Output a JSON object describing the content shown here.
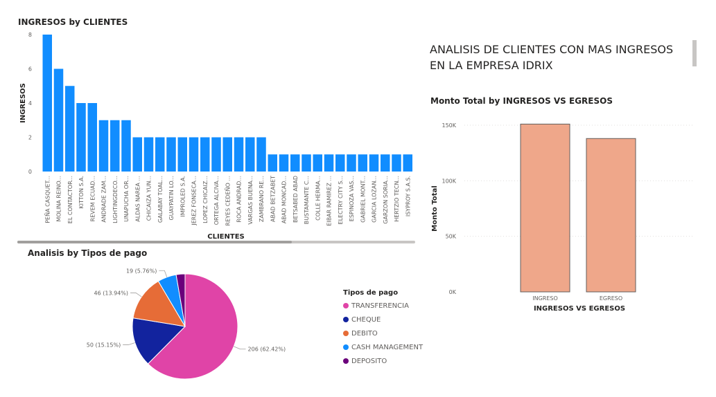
{
  "report": {
    "title": "ANALISIS DE CLIENTES CON MAS INGRESOS EN LA EMPRESA IDRIX",
    "scroll_indicator_color": "#c8c6c4"
  },
  "colors": {
    "bar_blue": "#118dff",
    "bar_salmon": "#efa78a",
    "bar_outline": "#605e5c",
    "scrollbar": "#c8c6c4"
  },
  "chart_data": [
    {
      "id": "clientes",
      "type": "bar",
      "title": "INGRESOS by CLIENTES",
      "xlabel": "CLIENTES",
      "ylabel": "INGRESOS",
      "ylim": [
        0,
        8
      ],
      "yticks": [
        0,
        2,
        4,
        6,
        8
      ],
      "grid": false,
      "color": "#118dff",
      "categories": [
        "PEÑA CASQUET...",
        "MOLINA REINO...",
        "EL CONTACTOR...",
        "KITTON S.A.",
        "REVEM ECUAD...",
        "ANDRADE ZAM...",
        "LIGHTINGDECO...",
        "UNAPUCHA OR...",
        "ALDAS NAREA ...",
        "CHICAIZA YUN...",
        "GALABAY TOAL...",
        "GUAYPATIN LO...",
        "IMPROLED S.A.",
        "JEREZ FONSECA...",
        "LOPEZ CHICAIZ...",
        "ORTEGA ALCIVA...",
        "REYES CEDEÑO ...",
        "ROCA ANDRAD...",
        "VARGAS BUENA...",
        "ZAMBRANO RE...",
        "ABAD BETZABET",
        "ABAD MONCAD...",
        "BETSABED ABAD",
        "BUSTAMANTE C...",
        "COLLE HERMA...",
        "EIBAR RAMIREZ ...",
        "ELECTRY CITY S...",
        "ESPINOZA VAS...",
        "GABRIEL MONT...",
        "GARCIA LOZAN...",
        "GARZON SORIA...",
        "HERTZIO TECN...",
        "ISYPROY S.A.S."
      ],
      "values": [
        8,
        6,
        5,
        4,
        4,
        3,
        3,
        3,
        2,
        2,
        2,
        2,
        2,
        2,
        2,
        2,
        2,
        2,
        2,
        2,
        1,
        1,
        1,
        1,
        1,
        1,
        1,
        1,
        1,
        1,
        1,
        1,
        1
      ]
    },
    {
      "id": "ingresos_egresos",
      "type": "bar",
      "title": "Monto Total by INGRESOS VS EGRESOS",
      "xlabel": "INGRESOS VS EGRESOS",
      "ylabel": "Monto Total",
      "ylim": [
        0,
        150000
      ],
      "yticks": [
        0,
        50000,
        100000,
        150000
      ],
      "ytick_labels": [
        "0K",
        "50K",
        "100K",
        "150K"
      ],
      "grid": true,
      "color": "#efa78a",
      "categories": [
        "INGRESO",
        "EGRESO"
      ],
      "values": [
        151000,
        138000
      ]
    },
    {
      "id": "tipos_pago",
      "type": "pie",
      "title": "Analisis by Tipos de pago",
      "legend_title": "Tipos de pago",
      "legend_position": "right",
      "slices": [
        {
          "name": "TRANSFERENCIA",
          "value": 206,
          "label": "206 (62.42%)",
          "color": "#e044a7"
        },
        {
          "name": "CHEQUE",
          "value": 50,
          "label": "50 (15.15%)",
          "color": "#12239e"
        },
        {
          "name": "DEBITO",
          "value": 46,
          "label": "46 (13.94%)",
          "color": "#e66c37"
        },
        {
          "name": "CASH MANAGEMENT",
          "value": 19,
          "label": "19 (5.76%)",
          "color": "#118dff"
        },
        {
          "name": "DEPOSITO",
          "value": 9,
          "label": "",
          "color": "#6b007b"
        }
      ]
    }
  ]
}
